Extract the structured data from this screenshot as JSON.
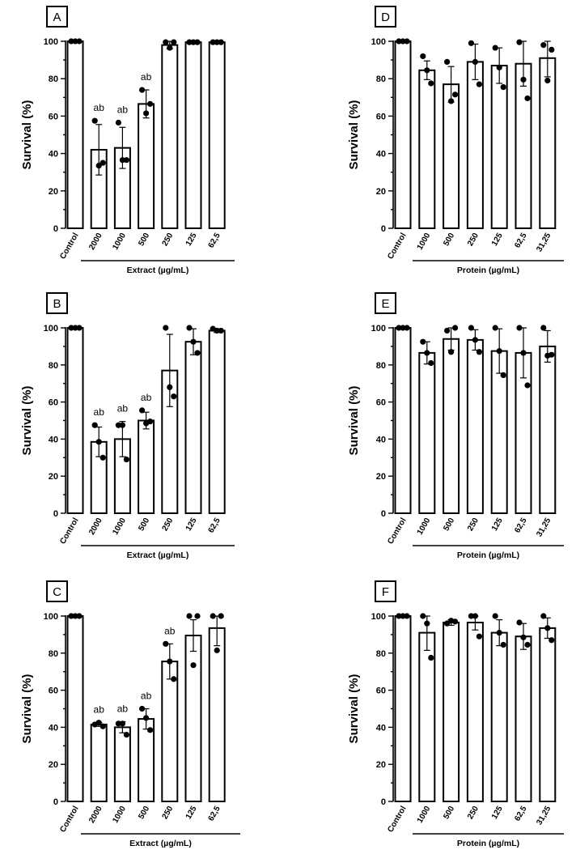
{
  "chart_data": [
    {
      "panel": "A",
      "type": "bar",
      "categories": [
        "Control",
        "2000",
        "1000",
        "500",
        "250",
        "125",
        "62,5"
      ],
      "values": [
        100,
        42,
        43,
        66.5,
        98,
        99.5,
        99.5
      ],
      "errors": [
        0,
        13.5,
        11,
        7.5,
        2,
        0.5,
        0.5
      ],
      "points": [
        [
          100,
          100,
          100
        ],
        [
          57.5,
          33.5,
          35
        ],
        [
          56.5,
          36.5,
          36.5
        ],
        [
          74,
          61.5,
          66.5
        ],
        [
          99.5,
          96.5,
          99.5
        ],
        [
          99.5,
          99.5,
          99.5
        ],
        [
          99.5,
          99.5,
          99.5
        ]
      ],
      "annotations": [
        "",
        "ab",
        "ab",
        "ab",
        "",
        "",
        ""
      ],
      "ylabel": "Survival (%)",
      "xgroup_label": "Extract (µg/mL)",
      "xgroup_start": 1,
      "ylim": [
        0,
        100
      ],
      "yticks": [
        0,
        20,
        40,
        60,
        80,
        100
      ]
    },
    {
      "panel": "B",
      "type": "bar",
      "categories": [
        "Control",
        "2000",
        "1000",
        "500",
        "250",
        "125",
        "62,5"
      ],
      "values": [
        100,
        38.5,
        40,
        50,
        77,
        92.5,
        98.5
      ],
      "errors": [
        0,
        8,
        9.5,
        4.5,
        19.5,
        7,
        1
      ],
      "points": [
        [
          100,
          100,
          100
        ],
        [
          47.5,
          38.5,
          30
        ],
        [
          47.5,
          47.5,
          29
        ],
        [
          55.5,
          48.5,
          49.5
        ],
        [
          100,
          68,
          63
        ],
        [
          100,
          92.5,
          86.5
        ],
        [
          99.5,
          98.5,
          98.5
        ]
      ],
      "annotations": [
        "",
        "ab",
        "ab",
        "ab",
        "",
        "",
        ""
      ],
      "ylabel": "Survival (%)",
      "xgroup_label": "Extract (µg/mL)",
      "xgroup_start": 1,
      "ylim": [
        0,
        100
      ],
      "yticks": [
        0,
        20,
        40,
        60,
        80,
        100
      ]
    },
    {
      "panel": "C",
      "type": "bar",
      "categories": [
        "Control",
        "2000",
        "1000",
        "500",
        "250",
        "125",
        "62,5"
      ],
      "values": [
        100,
        41.5,
        40,
        44.5,
        75.5,
        89.5,
        93.5
      ],
      "errors": [
        0,
        1,
        3,
        5.5,
        9.5,
        8.5,
        9.5
      ],
      "points": [
        [
          100,
          100,
          100
        ],
        [
          41.5,
          42.5,
          40.5
        ],
        [
          42,
          42,
          36
        ],
        [
          50,
          45,
          38.5
        ],
        [
          85,
          75.5,
          66
        ],
        [
          100,
          73.5,
          100
        ],
        [
          100,
          81.5,
          100
        ]
      ],
      "annotations": [
        "",
        "ab",
        "ab",
        "ab",
        "ab",
        "",
        ""
      ],
      "ylabel": "Survival (%)",
      "xgroup_label": "Extract (µg/mL)",
      "xgroup_start": 1,
      "ylim": [
        0,
        100
      ],
      "yticks": [
        0,
        20,
        40,
        60,
        80,
        100
      ]
    },
    {
      "panel": "D",
      "type": "bar",
      "categories": [
        "Control",
        "1000",
        "500",
        "250",
        "125",
        "62,5",
        "31,25"
      ],
      "values": [
        100,
        84.5,
        77,
        89,
        87,
        88,
        91
      ],
      "errors": [
        0,
        5,
        9.5,
        9.5,
        9.5,
        12,
        10
      ],
      "points": [
        [
          100,
          100,
          100
        ],
        [
          92,
          84.5,
          77.5
        ],
        [
          89,
          68,
          71.5
        ],
        [
          99,
          89,
          77
        ],
        [
          96.5,
          86,
          75.5
        ],
        [
          99.5,
          79.5,
          69.5
        ],
        [
          98,
          79,
          95.5
        ]
      ],
      "annotations": [
        "",
        "",
        "",
        "",
        "",
        "",
        ""
      ],
      "ylabel": "Survival (%)",
      "xgroup_label": "Protein (µg/mL)",
      "xgroup_start": 1,
      "ylim": [
        0,
        100
      ],
      "yticks": [
        0,
        20,
        40,
        60,
        80,
        100
      ]
    },
    {
      "panel": "E",
      "type": "bar",
      "categories": [
        "Control",
        "1000",
        "500",
        "250",
        "125",
        "62,5",
        "31,25"
      ],
      "values": [
        100,
        86.5,
        94,
        93.5,
        87.5,
        86.5,
        90
      ],
      "errors": [
        0,
        6,
        6,
        5.5,
        12,
        13.5,
        8.5
      ],
      "points": [
        [
          100,
          100,
          100
        ],
        [
          92.5,
          86.5,
          81
        ],
        [
          98.5,
          87,
          100
        ],
        [
          100,
          93.5,
          87
        ],
        [
          100,
          87.5,
          74.5
        ],
        [
          100,
          86.5,
          69
        ],
        [
          100,
          85,
          85.5
        ]
      ],
      "annotations": [
        "",
        "",
        "",
        "",
        "",
        "",
        ""
      ],
      "ylabel": "Survival (%)",
      "xgroup_label": "Protein (µg/mL)",
      "xgroup_start": 1,
      "ylim": [
        0,
        100
      ],
      "yticks": [
        0,
        20,
        40,
        60,
        80,
        100
      ]
    },
    {
      "panel": "F",
      "type": "bar",
      "categories": [
        "Control",
        "1000",
        "500",
        "250",
        "125",
        "62,5",
        "31,25"
      ],
      "values": [
        100,
        91,
        96.5,
        96.5,
        91,
        89,
        93.5
      ],
      "errors": [
        0,
        9.5,
        1.5,
        4,
        7,
        7,
        5.5
      ],
      "points": [
        [
          100,
          100,
          100
        ],
        [
          100,
          96,
          77.5
        ],
        [
          96,
          97.5,
          97
        ],
        [
          100,
          100,
          89
        ],
        [
          100,
          91,
          84.5
        ],
        [
          96.5,
          88.5,
          84.5
        ],
        [
          100,
          93.5,
          87
        ]
      ],
      "annotations": [
        "",
        "",
        "",
        "",
        "",
        "",
        ""
      ],
      "ylabel": "Survival (%)",
      "xgroup_label": "Protein (µg/mL)",
      "xgroup_start": 1,
      "ylim": [
        0,
        100
      ],
      "yticks": [
        0,
        20,
        40,
        60,
        80,
        100
      ]
    }
  ]
}
